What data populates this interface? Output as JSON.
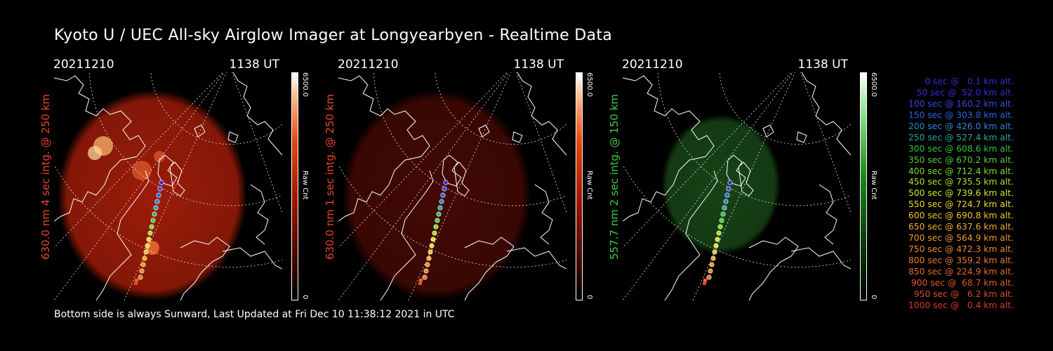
{
  "title": "Kyoto U / UEC All-sky Airglow Imager at Longyearbyen - Realtime Data",
  "footer": "Bottom side is always Sunward, Last Updated at Fri Dec 10 11:38:12 2021 in UTC",
  "panels": [
    {
      "date": "20211210",
      "time": "1138 UT",
      "ylabel": "630.0 nm 4 sec intg. @ 250 km",
      "label_color": "#e8452a",
      "cbar_max": "6500.0",
      "cbar_min": "0",
      "cbar_unit": "Raw Cnt"
    },
    {
      "date": "20211210",
      "time": "1138 UT",
      "ylabel": "630.0 nm 1 sec intg. @ 250 km",
      "label_color": "#e8452a",
      "cbar_max": "6500.0",
      "cbar_min": "0",
      "cbar_unit": "Raw Cnt"
    },
    {
      "date": "20211210",
      "time": "1138 UT",
      "ylabel": "557.7 nm 2 sec intg. @ 150 km",
      "label_color": "#3ecb3e",
      "cbar_max": "6500.0",
      "cbar_min": "0",
      "cbar_unit": "Raw Cnt"
    }
  ],
  "legend": [
    {
      "text": "0 sec @   0.1 km alt.",
      "color": "#3a2bd6"
    },
    {
      "text": "50 sec @  52.0 km alt.",
      "color": "#3a2bd6"
    },
    {
      "text": "100 sec @ 160.2 km alt.",
      "color": "#3a47e0"
    },
    {
      "text": "150 sec @ 303.8 km alt.",
      "color": "#2f62e6"
    },
    {
      "text": "200 sec @ 426.0 km alt.",
      "color": "#2f84d8"
    },
    {
      "text": "250 sec @ 527.4 km alt.",
      "color": "#2aa3a8"
    },
    {
      "text": "300 sec @ 608.6 km alt.",
      "color": "#33c04a"
    },
    {
      "text": "350 sec @ 670.2 km alt.",
      "color": "#4fd03a"
    },
    {
      "text": "400 sec @ 712.4 km alt.",
      "color": "#7ddd2e"
    },
    {
      "text": "450 sec @ 735.5 km alt.",
      "color": "#a9e42a"
    },
    {
      "text": "500 sec @ 739.6 km alt.",
      "color": "#d3e82a"
    },
    {
      "text": "550 sec @ 724.7 km alt.",
      "color": "#ecdf2a"
    },
    {
      "text": "600 sec @ 690.8 km alt.",
      "color": "#f2c52a"
    },
    {
      "text": "650 sec @ 637.6 km alt.",
      "color": "#f2ae2a"
    },
    {
      "text": "700 sec @ 564.9 km alt.",
      "color": "#f29a2a"
    },
    {
      "text": "750 sec @ 472.3 km alt.",
      "color": "#ef8a2a"
    },
    {
      "text": "800 sec @ 359.2 km alt.",
      "color": "#ec7a2a"
    },
    {
      "text": "850 sec @ 224.9 km alt.",
      "color": "#e8682a"
    },
    {
      "text": "900 sec @  68.7 km alt.",
      "color": "#e5582a"
    },
    {
      "text": "950 sec @   6.2 km alt.",
      "color": "#e0482a"
    },
    {
      "text": "1000 sec @   0.4 km alt.",
      "color": "#dc3a2a"
    }
  ]
}
